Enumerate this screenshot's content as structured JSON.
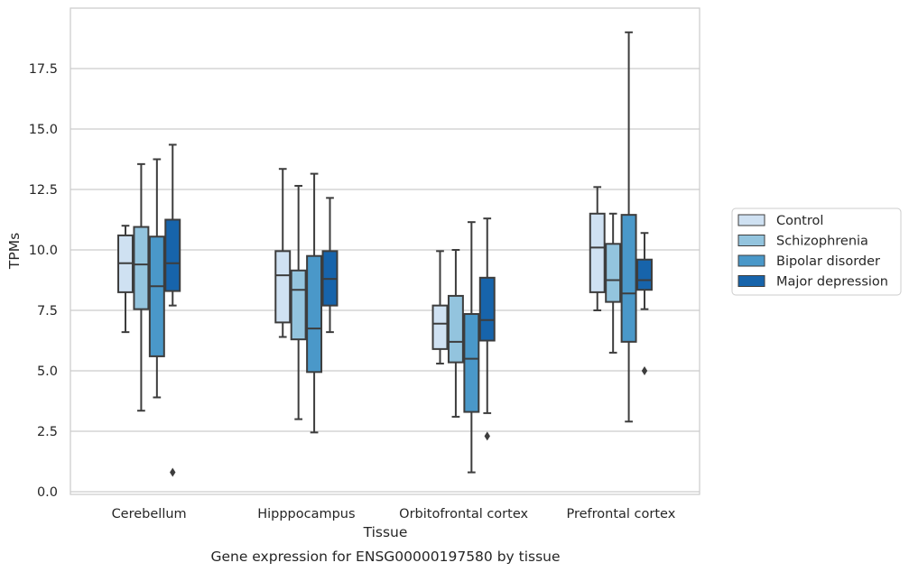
{
  "chart_data": {
    "type": "boxplot",
    "caption": "Gene expression for ENSG00000197580 by tissue",
    "xlabel": "Tissue",
    "ylabel": "TPMs",
    "ylim": [
      -0.1,
      20
    ],
    "yticks": [
      "0.0",
      "2.5",
      "5.0",
      "7.5",
      "10.0",
      "12.5",
      "15.0",
      "17.5"
    ],
    "grid": true,
    "legend_position": "right",
    "categories": [
      "Cerebellum",
      "Hipppocampus",
      "Orbitofrontal cortex",
      "Prefrontal cortex"
    ],
    "series": [
      {
        "name": "Control",
        "color": "#cfe1f2",
        "boxes": [
          {
            "whislo": 6.6,
            "q1": 8.25,
            "med": 9.45,
            "q3": 10.6,
            "whishi": 11.0,
            "fliers": []
          },
          {
            "whislo": 6.4,
            "q1": 7.0,
            "med": 8.95,
            "q3": 9.95,
            "whishi": 13.35,
            "fliers": []
          },
          {
            "whislo": 5.3,
            "q1": 5.9,
            "med": 6.95,
            "q3": 7.7,
            "whishi": 9.95,
            "fliers": []
          },
          {
            "whislo": 7.5,
            "q1": 8.25,
            "med": 10.1,
            "q3": 11.5,
            "whishi": 12.6,
            "fliers": []
          }
        ]
      },
      {
        "name": "Schizophrenia",
        "color": "#93c4de",
        "boxes": [
          {
            "whislo": 3.35,
            "q1": 7.55,
            "med": 9.4,
            "q3": 10.95,
            "whishi": 13.55,
            "fliers": []
          },
          {
            "whislo": 3.0,
            "q1": 6.3,
            "med": 8.35,
            "q3": 9.15,
            "whishi": 12.65,
            "fliers": []
          },
          {
            "whislo": 3.1,
            "q1": 5.35,
            "med": 6.2,
            "q3": 8.1,
            "whishi": 10.0,
            "fliers": []
          },
          {
            "whislo": 5.75,
            "q1": 7.85,
            "med": 8.75,
            "q3": 10.25,
            "whishi": 11.5,
            "fliers": []
          }
        ]
      },
      {
        "name": "Bipolar disorder",
        "color": "#4a98c9",
        "boxes": [
          {
            "whislo": 3.9,
            "q1": 5.6,
            "med": 8.5,
            "q3": 10.55,
            "whishi": 13.75,
            "fliers": []
          },
          {
            "whislo": 2.45,
            "q1": 4.95,
            "med": 6.75,
            "q3": 9.75,
            "whishi": 13.15,
            "fliers": []
          },
          {
            "whislo": 0.8,
            "q1": 3.3,
            "med": 5.5,
            "q3": 7.35,
            "whishi": 11.15,
            "fliers": []
          },
          {
            "whislo": 2.9,
            "q1": 6.2,
            "med": 8.2,
            "q3": 11.45,
            "whishi": 19.0,
            "fliers": []
          }
        ]
      },
      {
        "name": "Major depression",
        "color": "#1764ab",
        "boxes": [
          {
            "whislo": 7.7,
            "q1": 8.3,
            "med": 9.45,
            "q3": 11.25,
            "whishi": 14.35,
            "fliers": [
              0.8
            ]
          },
          {
            "whislo": 6.6,
            "q1": 7.7,
            "med": 8.8,
            "q3": 9.95,
            "whishi": 12.15,
            "fliers": []
          },
          {
            "whislo": 3.25,
            "q1": 6.25,
            "med": 7.1,
            "q3": 8.85,
            "whishi": 11.3,
            "fliers": [
              2.3
            ]
          },
          {
            "whislo": 7.55,
            "q1": 8.35,
            "med": 8.75,
            "q3": 9.6,
            "whishi": 10.7,
            "fliers": [
              5.0
            ]
          }
        ]
      }
    ]
  }
}
